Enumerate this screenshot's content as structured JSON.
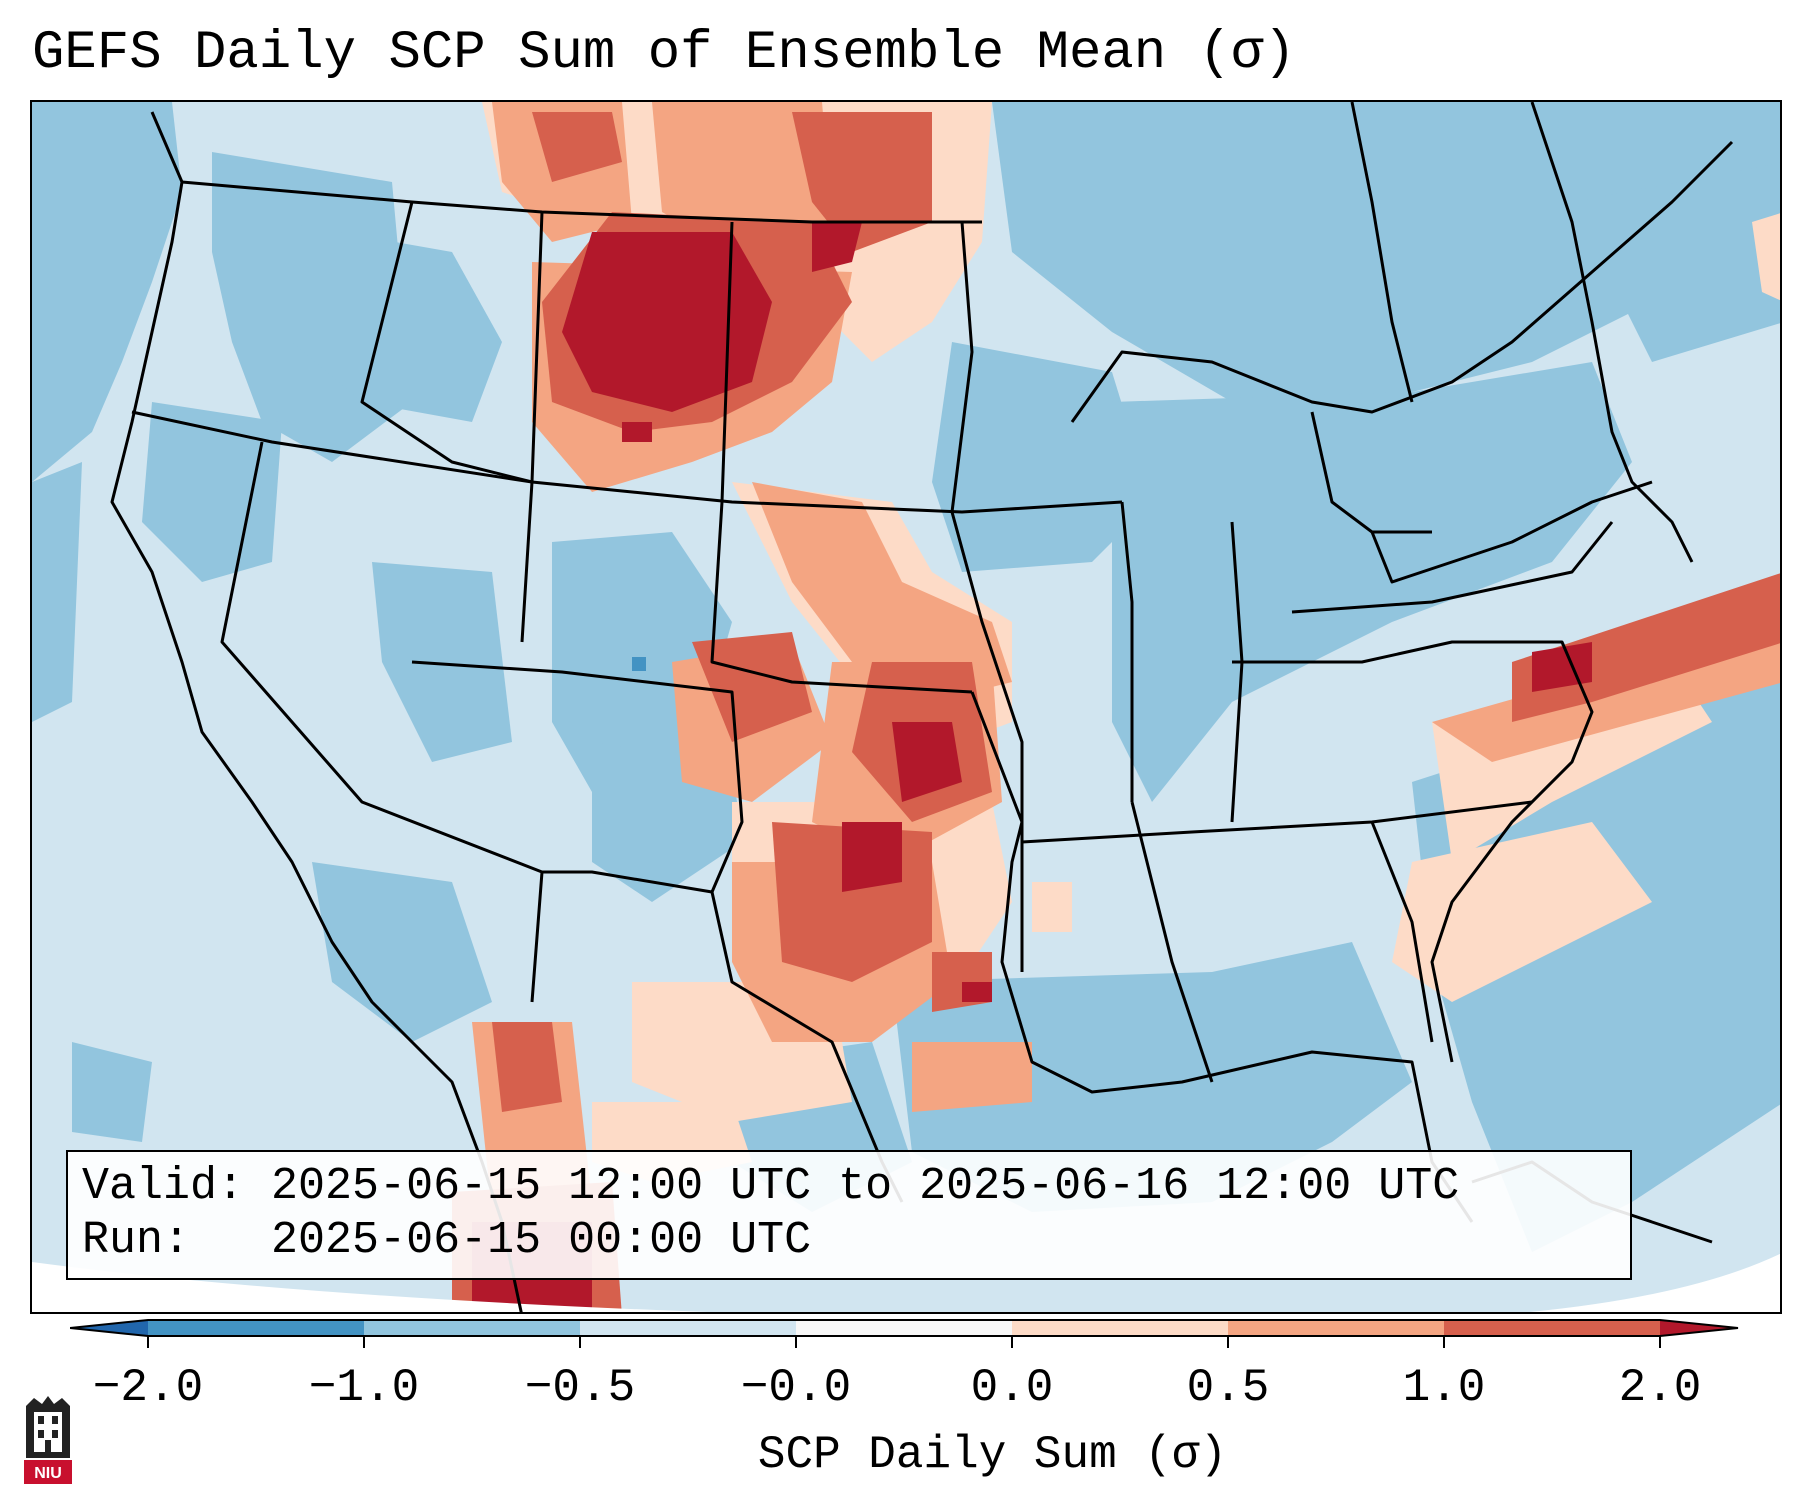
{
  "title": "GEFS Daily SCP Sum of Ensemble Mean (σ)",
  "info": {
    "valid_label": "Valid:",
    "valid_value": "2025-06-15 12:00 UTC to 2025-06-16 12:00 UTC",
    "run_label": "Run:",
    "run_value": "2025-06-15 00:00 UTC"
  },
  "colorbar": {
    "label": "SCP Daily Sum (σ)",
    "ticks": [
      "−2.0",
      "−1.0",
      "−0.5",
      "−0.0",
      "0.0",
      "0.5",
      "1.0",
      "2.0"
    ],
    "colors": [
      "#2166ac",
      "#4393c3",
      "#92c5de",
      "#d1e5f0",
      "#fddbc7",
      "#f4a582",
      "#d6604d",
      "#b2182b"
    ]
  },
  "logo_text": "NIU"
}
